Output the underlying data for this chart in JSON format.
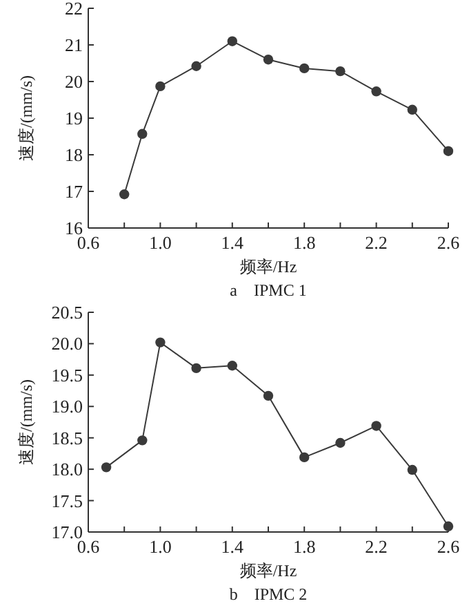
{
  "chart_data": [
    {
      "type": "line",
      "title": "a　IPMC 1",
      "xlabel": "频率/Hz",
      "ylabel": "速度/(mm/s)",
      "marker": "circle",
      "line_style": "solid",
      "grid": false,
      "x": [
        0.8,
        0.9,
        1.0,
        1.2,
        1.4,
        1.6,
        1.8,
        2.0,
        2.2,
        2.4,
        2.6
      ],
      "series": [
        {
          "color": "#3a3a3a",
          "values": [
            16.92,
            18.57,
            19.87,
            20.42,
            21.1,
            20.6,
            20.36,
            20.28,
            19.73,
            19.23,
            18.1
          ]
        }
      ],
      "xlim": [
        0.6,
        2.6
      ],
      "xticks": [
        0.6,
        {
          "value": 0.8,
          "label": null
        },
        {
          "value": 1.0,
          "label": "1.0"
        },
        {
          "value": 1.2,
          "label": null
        },
        1.4,
        {
          "value": 1.6,
          "label": null
        },
        1.8,
        {
          "value": 2.0,
          "label": null
        },
        2.2,
        {
          "value": 2.4,
          "label": null
        },
        2.6
      ],
      "ylim": [
        16,
        22
      ],
      "yticks": [
        16,
        17,
        18,
        19,
        20,
        21,
        22
      ]
    },
    {
      "type": "line",
      "title": "b　IPMC 2",
      "xlabel": "频率/Hz",
      "ylabel": "速度/(mm/s)",
      "marker": "circle",
      "line_style": "solid",
      "grid": false,
      "x": [
        0.7,
        0.9,
        1.0,
        1.2,
        1.4,
        1.6,
        1.8,
        2.0,
        2.2,
        2.4,
        2.6
      ],
      "series": [
        {
          "color": "#3a3a3a",
          "values": [
            18.03,
            18.46,
            20.02,
            19.61,
            19.65,
            19.17,
            18.19,
            18.42,
            18.69,
            17.99,
            17.09
          ]
        }
      ],
      "xlim": [
        0.6,
        2.6
      ],
      "xticks": [
        0.6,
        {
          "value": 0.8,
          "label": null
        },
        {
          "value": 1.0,
          "label": "1.0"
        },
        {
          "value": 1.2,
          "label": null
        },
        1.4,
        {
          "value": 1.6,
          "label": null
        },
        1.8,
        {
          "value": 2.0,
          "label": null
        },
        2.2,
        {
          "value": 2.4,
          "label": null
        },
        2.6
      ],
      "ylim": [
        17,
        20.5
      ],
      "yticks": [
        {
          "value": 17,
          "label": "17.0"
        },
        17.5,
        {
          "value": 18,
          "label": "18.0"
        },
        18.5,
        {
          "value": 19,
          "label": "19.0"
        },
        19.5,
        {
          "value": 20,
          "label": "20.0"
        },
        20.5
      ]
    }
  ]
}
